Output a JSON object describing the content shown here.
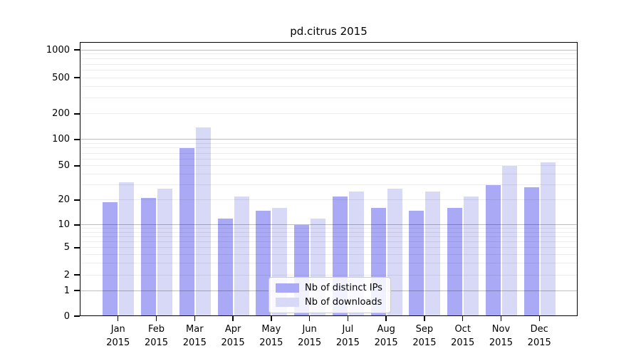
{
  "figure": {
    "background": "#ffffff"
  },
  "chart_data": {
    "type": "bar",
    "title": "pd.citrus 2015",
    "xlabel": "",
    "ylabel": "",
    "y_scale": "symlog",
    "ylim": [
      0,
      1200
    ],
    "y_tick_values": [
      0,
      1,
      2,
      5,
      10,
      20,
      50,
      100,
      200,
      500,
      1000
    ],
    "y_tick_labels": [
      "0",
      "1",
      "2",
      "5",
      "10",
      "20",
      "50",
      "100",
      "200",
      "500",
      "1000"
    ],
    "grid": {
      "enabled": true,
      "major_values": [
        1,
        10,
        100,
        1000
      ],
      "minor_values": [
        2,
        3,
        4,
        5,
        6,
        7,
        8,
        9,
        20,
        30,
        40,
        50,
        60,
        70,
        80,
        90,
        200,
        300,
        400,
        500,
        600,
        700,
        800,
        900
      ]
    },
    "categories": [
      {
        "month": "Jan",
        "year": "2015"
      },
      {
        "month": "Feb",
        "year": "2015"
      },
      {
        "month": "Mar",
        "year": "2015"
      },
      {
        "month": "Apr",
        "year": "2015"
      },
      {
        "month": "May",
        "year": "2015"
      },
      {
        "month": "Jun",
        "year": "2015"
      },
      {
        "month": "Jul",
        "year": "2015"
      },
      {
        "month": "Aug",
        "year": "2015"
      },
      {
        "month": "Sep",
        "year": "2015"
      },
      {
        "month": "Oct",
        "year": "2015"
      },
      {
        "month": "Nov",
        "year": "2015"
      },
      {
        "month": "Dec",
        "year": "2015"
      }
    ],
    "series": [
      {
        "name": "Nb of distinct IPs",
        "key": "distinct-ips",
        "color": "#a9a9f5",
        "values": [
          19,
          21,
          80,
          12,
          15,
          10,
          22,
          16,
          15,
          16,
          30,
          28
        ]
      },
      {
        "name": "Nb of downloads",
        "key": "downloads",
        "color": "#d8d8f7",
        "values": [
          32,
          27,
          140,
          22,
          16,
          12,
          25,
          27,
          25,
          22,
          50,
          55
        ]
      }
    ],
    "legend": {
      "position": "lower center",
      "entries": [
        "Nb of distinct IPs",
        "Nb of downloads"
      ]
    }
  },
  "colors": {
    "bar_distinct_ips": "#a9a9f5",
    "bar_downloads": "#d8d8f7",
    "grid_major": "#bdbdbd",
    "grid_minor": "#ededed",
    "axis_frame": "#000000",
    "legend_border": "#cccccc",
    "text": "#000000"
  }
}
